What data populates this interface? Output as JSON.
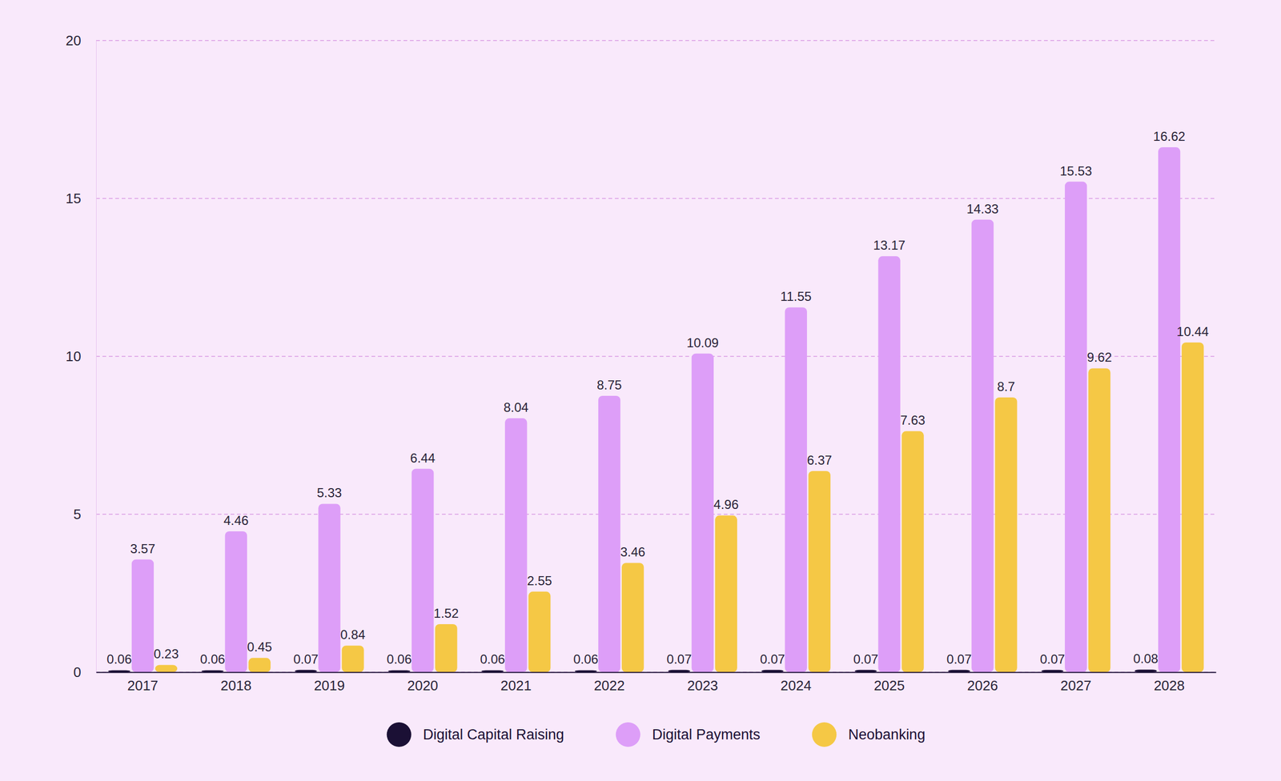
{
  "chart_data": {
    "type": "bar",
    "categories": [
      "2017",
      "2018",
      "2019",
      "2020",
      "2021",
      "2022",
      "2023",
      "2024",
      "2025",
      "2026",
      "2027",
      "2028"
    ],
    "series": [
      {
        "name": "Digital Capital Raising",
        "color": "#1b1035",
        "values": [
          0.06,
          0.06,
          0.07,
          0.06,
          0.06,
          0.06,
          0.07,
          0.07,
          0.07,
          0.07,
          0.07,
          0.08
        ]
      },
      {
        "name": "Digital Payments",
        "color": "#dd9ef8",
        "values": [
          3.57,
          4.46,
          5.33,
          6.44,
          8.04,
          8.75,
          10.09,
          11.55,
          13.17,
          14.33,
          15.53,
          16.62
        ]
      },
      {
        "name": "Neobanking",
        "color": "#f5c845",
        "values": [
          0.23,
          0.45,
          0.84,
          1.52,
          2.55,
          3.46,
          4.96,
          6.37,
          7.63,
          8.7,
          9.62,
          10.44
        ]
      }
    ],
    "ylim": [
      0,
      20
    ],
    "yticks": [
      0,
      5,
      10,
      15,
      20
    ],
    "grid": true,
    "legend": "bottom",
    "data_labels": true
  }
}
